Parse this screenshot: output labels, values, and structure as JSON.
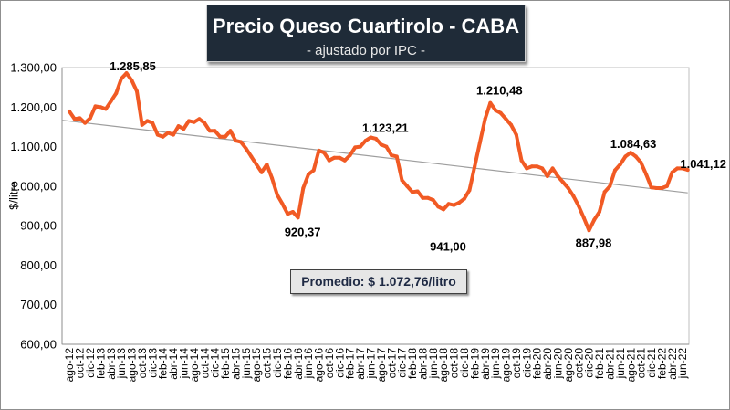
{
  "chart_data": {
    "type": "line",
    "title": "Precio Queso Cuartirolo - CABA",
    "subtitle": "- ajustado por IPC -",
    "ylabel": "$/litro",
    "ylim": [
      600,
      1300
    ],
    "y_ticks": [
      {
        "value": 1300,
        "label": "1.300,00"
      },
      {
        "value": 1200,
        "label": "1.200,00"
      },
      {
        "value": 1100,
        "label": "1.100,00"
      },
      {
        "value": 1000,
        "label": "1.000,00"
      },
      {
        "value": 900,
        "label": "900,00"
      },
      {
        "value": 800,
        "label": "800,00"
      },
      {
        "value": 700,
        "label": "700,00"
      },
      {
        "value": 600,
        "label": "600,00"
      }
    ],
    "x_ticks": [
      "ago-12",
      "oct-12",
      "dic-12",
      "feb-13",
      "abr-13",
      "jun-13",
      "ago-13",
      "oct-13",
      "dic-13",
      "feb-14",
      "abr-14",
      "jun-14",
      "ago-14",
      "oct-14",
      "dic-14",
      "feb-15",
      "abr-15",
      "jun-15",
      "ago-15",
      "oct-15",
      "dic-15",
      "feb-16",
      "abr-16",
      "jun-16",
      "ago-16",
      "oct-16",
      "dic-16",
      "feb-17",
      "abr-17",
      "jun-17",
      "ago-17",
      "oct-17",
      "dic-17",
      "feb-18",
      "abr-18",
      "jun-18",
      "ago-18",
      "oct-18",
      "dic-18",
      "feb-19",
      "abr-19",
      "jun-19",
      "ago-19",
      "oct-19",
      "dic-19",
      "feb-20",
      "abr-20",
      "jun-20",
      "ago-20",
      "oct-20",
      "dic-20",
      "feb-21",
      "abr-21",
      "jun-21",
      "ago-21",
      "oct-21",
      "dic-21",
      "feb-22",
      "abr-22",
      "jun-22"
    ],
    "series": [
      {
        "color": "#f15a24",
        "values": [
          1189,
          1170,
          1172,
          1160,
          1172,
          1202,
          1200,
          1195,
          1215,
          1235,
          1272,
          1285.85,
          1268,
          1240,
          1155,
          1165,
          1160,
          1130,
          1125,
          1135,
          1130,
          1152,
          1145,
          1165,
          1162,
          1170,
          1160,
          1140,
          1140,
          1125,
          1125,
          1140,
          1115,
          1112,
          1095,
          1075,
          1055,
          1035,
          1055,
          1020,
          978,
          955,
          930,
          935,
          920.37,
          995,
          1030,
          1040,
          1090,
          1085,
          1065,
          1072,
          1072,
          1065,
          1078,
          1098,
          1100,
          1115,
          1123.21,
          1120,
          1105,
          1100,
          1078,
          1075,
          1015,
          1000,
          985,
          987,
          970,
          970,
          965,
          948,
          941,
          955,
          952,
          958,
          968,
          990,
          1050,
          1110,
          1170,
          1210.48,
          1192,
          1185,
          1170,
          1155,
          1130,
          1065,
          1045,
          1050,
          1050,
          1045,
          1025,
          1045,
          1025,
          1010,
          995,
          975,
          950,
          920,
          887.98,
          915,
          935,
          985,
          1000,
          1040,
          1055,
          1075,
          1084.63,
          1075,
          1060,
          1030,
          997,
          995,
          995,
          1000,
          1035,
          1045,
          1045,
          1041.12
        ]
      }
    ],
    "trendline": true,
    "data_labels": [
      {
        "value": 1285.85,
        "text": "1.285,85"
      },
      {
        "value": 920.37,
        "text": "920,37"
      },
      {
        "value": 1123.21,
        "text": "1.123,21"
      },
      {
        "value": 941,
        "text": "941,00"
      },
      {
        "value": 1210.48,
        "text": "1.210,48"
      },
      {
        "value": 887.98,
        "text": "887,98"
      },
      {
        "value": 1084.63,
        "text": "1.084,63"
      },
      {
        "value": 1041.12,
        "text": "1.041,12"
      }
    ],
    "average_box_text": "Promedio: $ 1.072,76/litro",
    "grid": false,
    "legend": false,
    "colors": {
      "trendline": "#9e9e9e",
      "title_box": "#1f2b38",
      "title_text": "#ffffff",
      "average_box": "#e6e6e6",
      "average_text": "#1f2a44",
      "plot_border": "#bfbfbf"
    }
  }
}
